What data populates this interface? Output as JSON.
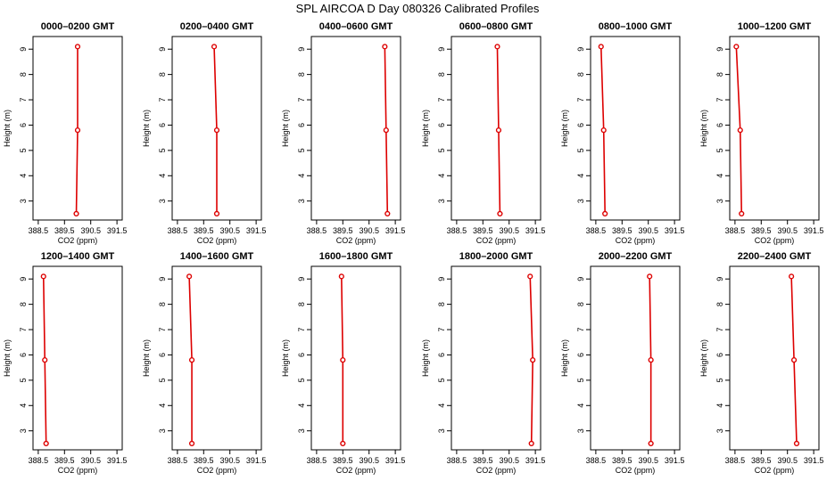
{
  "title": "SPL AIRCOA D  Day 080326  Calibrated Profiles",
  "chart_data": {
    "type": "line",
    "line_color": "#dd0000",
    "x_ticks": [
      "388.5",
      "389.5",
      "390.5",
      "391.5"
    ],
    "xlim": [
      388.3,
      391.7
    ],
    "y_ticks": [
      "3",
      "4",
      "5",
      "6",
      "7",
      "8",
      "9"
    ],
    "ylim": [
      2.25,
      9.5
    ],
    "heights": [
      2.5,
      5.8,
      9.1
    ],
    "xlabel": "CO2 (ppm)",
    "ylabel": "Height (m)",
    "panels": [
      {
        "title": "0000–0200 GMT",
        "co2": [
          389.95,
          390.0,
          390.0
        ]
      },
      {
        "title": "0200–0400 GMT",
        "co2": [
          390.0,
          390.0,
          389.9
        ]
      },
      {
        "title": "0400–0600 GMT",
        "co2": [
          391.2,
          391.15,
          391.1
        ]
      },
      {
        "title": "0600–0800 GMT",
        "co2": [
          390.15,
          390.1,
          390.05
        ]
      },
      {
        "title": "0800–1000 GMT",
        "co2": [
          388.85,
          388.8,
          388.7
        ]
      },
      {
        "title": "1000–1200 GMT",
        "co2": [
          388.75,
          388.7,
          388.55
        ]
      },
      {
        "title": "1200–1400 GMT",
        "co2": [
          388.8,
          388.75,
          388.7
        ]
      },
      {
        "title": "1400–1600 GMT",
        "co2": [
          389.05,
          389.05,
          388.95
        ]
      },
      {
        "title": "1600–1800 GMT",
        "co2": [
          389.5,
          389.5,
          389.45
        ]
      },
      {
        "title": "1800–2000 GMT",
        "co2": [
          391.35,
          391.4,
          391.3
        ]
      },
      {
        "title": "2000–2200 GMT",
        "co2": [
          390.6,
          390.6,
          390.55
        ]
      },
      {
        "title": "2200–2400 GMT",
        "co2": [
          390.85,
          390.75,
          390.65
        ]
      }
    ]
  }
}
